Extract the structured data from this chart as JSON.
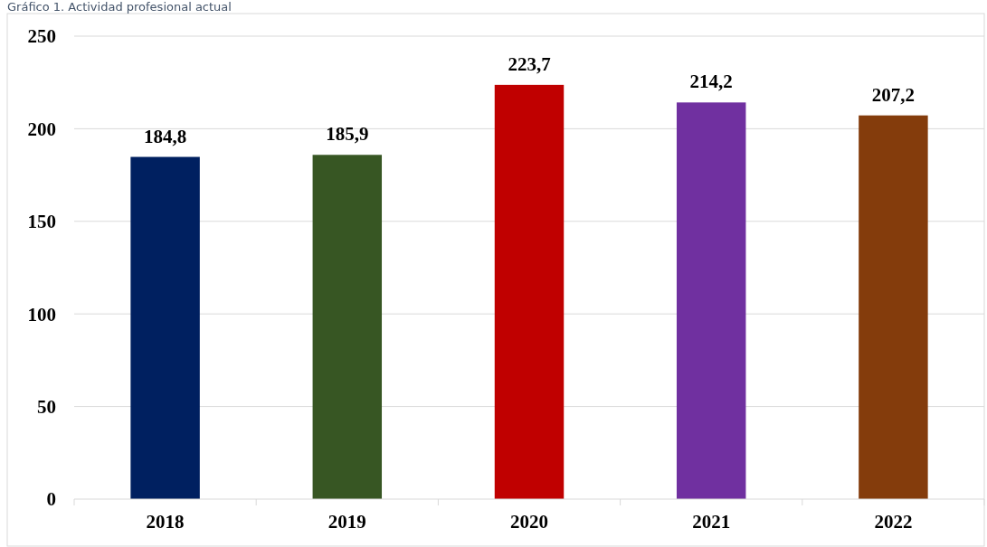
{
  "chart_data": {
    "type": "bar",
    "title": "Gráfico 1. Actividad profesional actual",
    "categories": [
      "2018",
      "2019",
      "2020",
      "2021",
      "2022"
    ],
    "values": [
      184.8,
      185.9,
      223.7,
      214.2,
      207.2
    ],
    "colors": [
      "#002060",
      "#375623",
      "#c00000",
      "#7030a0",
      "#843c0c"
    ],
    "value_labels": [
      "184,8",
      "185,9",
      "223,7",
      "214,2",
      "207,2"
    ],
    "ylim": [
      0,
      250
    ],
    "yticks": [
      0,
      50,
      100,
      150,
      200,
      250
    ],
    "grid": "y"
  }
}
